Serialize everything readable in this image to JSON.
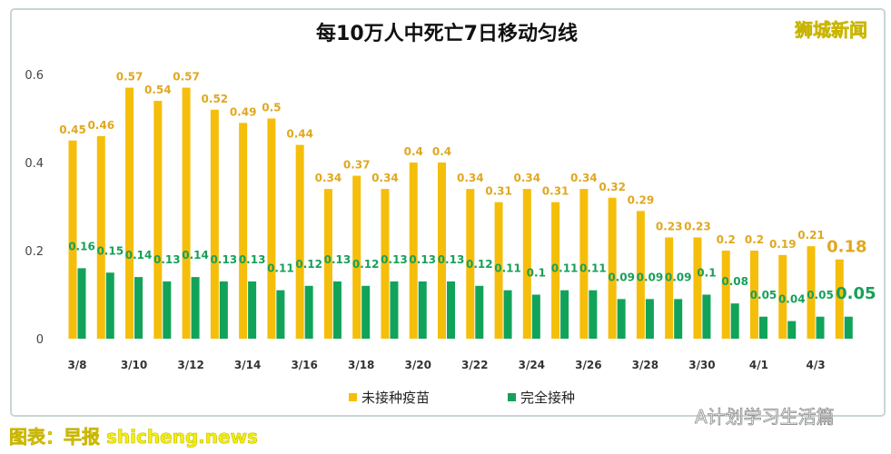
{
  "chart_data": {
    "type": "bar",
    "title": "每10万人中死亡7日移动匀线",
    "categories": [
      "3/8",
      "3/9",
      "3/10",
      "3/11",
      "3/12",
      "3/13",
      "3/14",
      "3/15",
      "3/16",
      "3/17",
      "3/18",
      "3/19",
      "3/20",
      "3/21",
      "3/22",
      "3/23",
      "3/24",
      "3/25",
      "3/26",
      "3/27",
      "3/28",
      "3/29",
      "3/30",
      "3/31",
      "4/1",
      "4/2",
      "4/3",
      "4/4"
    ],
    "tick_labels": [
      "3/8",
      "3/10",
      "3/12",
      "3/14",
      "3/16",
      "3/18",
      "3/20",
      "3/22",
      "3/24",
      "3/26",
      "3/28",
      "3/30",
      "4/1",
      "4/3"
    ],
    "series": [
      {
        "name": "未接种疫苗",
        "color": "#F5BE0B",
        "values": [
          0.45,
          0.46,
          0.57,
          0.54,
          0.57,
          0.52,
          0.49,
          0.5,
          0.44,
          0.34,
          0.37,
          0.34,
          0.4,
          0.4,
          0.34,
          0.31,
          0.34,
          0.31,
          0.34,
          0.32,
          0.29,
          0.23,
          0.23,
          0.2,
          0.2,
          0.19,
          0.21,
          0.18
        ]
      },
      {
        "name": "完全接种",
        "color": "#12A35A",
        "values": [
          0.16,
          0.15,
          0.14,
          0.13,
          0.14,
          0.13,
          0.13,
          0.11,
          0.12,
          0.13,
          0.12,
          0.13,
          0.13,
          0.13,
          0.12,
          0.11,
          0.1,
          0.11,
          0.11,
          0.09,
          0.09,
          0.09,
          0.1,
          0.08,
          0.05,
          0.04,
          0.05,
          0.05
        ]
      }
    ],
    "yticks": [
      "0",
      "0.2",
      "0.4",
      "0.6"
    ],
    "ylim": [
      0,
      0.6
    ],
    "grid": false,
    "legend": "bottom"
  },
  "watermarks": {
    "top_right": "狮城新闻",
    "bottom_left": "图表：早报 shicheng.news",
    "bottom_right": "A计划学习生活篇"
  }
}
